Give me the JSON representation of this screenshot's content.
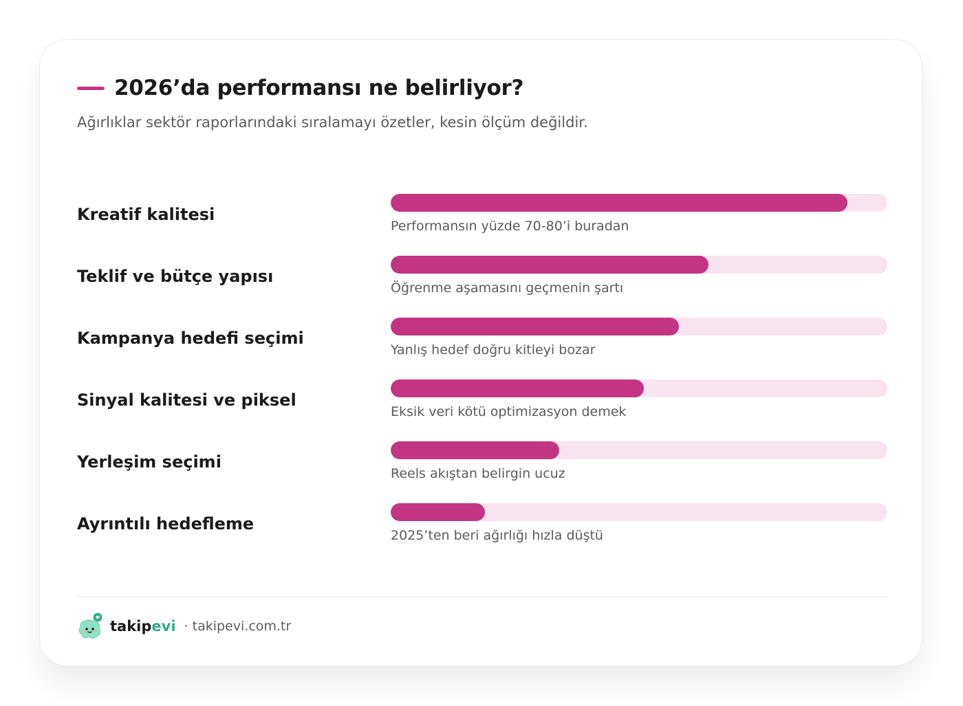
{
  "title": "2026’da performansı ne belirliyor?",
  "subtitle": "Ağırlıklar sektör raporlarındaki sıralamayı özetler, kesin ölçüm değildir.",
  "chart_data": {
    "type": "bar",
    "orientation": "horizontal",
    "categories": [
      "Kreatif kalitesi",
      "Teklif ve bütçe yapısı",
      "Kampanya hedefi seçimi",
      "Sinyal kalitesi ve piksel",
      "Yerleşim seçimi",
      "Ayrıntılı hedefleme"
    ],
    "values": [
      92,
      64,
      58,
      51,
      34,
      19
    ],
    "notes": [
      "Performansın yüzde 70-80’i buradan",
      "Öğrenme aşamasını geçmenin şartı",
      "Yanlış hedef doğru kitleyi bozar",
      "Eksik veri kötü optimizasyon demek",
      "Reels akıştan belirgin ucuz",
      "2025’ten beri ağırlığı hızla düştü"
    ],
    "xlim": [
      0,
      100
    ],
    "grid": false,
    "legend": "none",
    "bar_color": "#c33582",
    "track_color": "#f7e4ef"
  },
  "footer": {
    "brand_main": "takip",
    "brand_accent": "evi",
    "site": "· takipevi.com.tr",
    "brand_color": "#2fae8a"
  }
}
